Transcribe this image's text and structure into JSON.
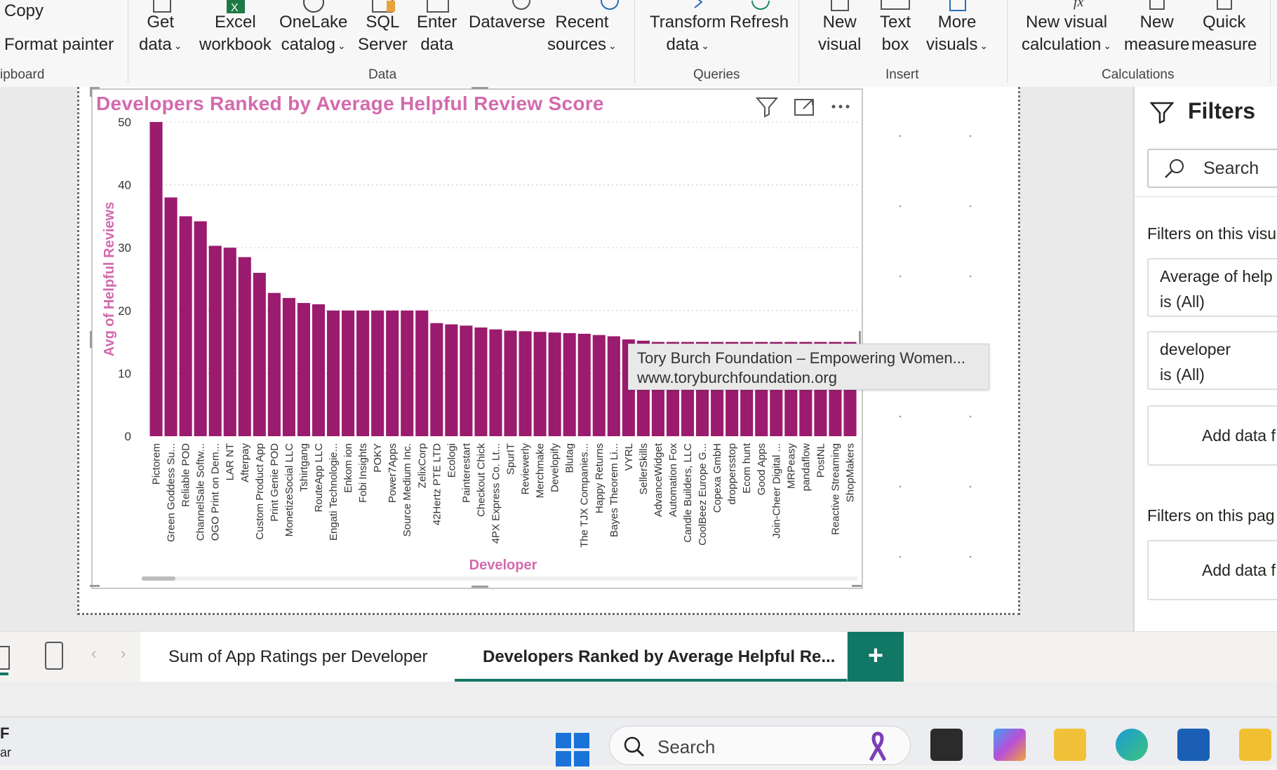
{
  "ribbon": {
    "clipboard": {
      "copy": "Copy",
      "format_painter": "Format painter",
      "group": "ipboard"
    },
    "data_group": {
      "label": "Data",
      "buttons": [
        {
          "l1": "Get",
          "l2": "data",
          "chev": true
        },
        {
          "l1": "Excel",
          "l2": "workbook",
          "chev": false
        },
        {
          "l1": "OneLake",
          "l2": "catalog",
          "chev": true
        },
        {
          "l1": "SQL",
          "l2": "Server",
          "chev": false
        },
        {
          "l1": "Enter",
          "l2": "data",
          "chev": false
        },
        {
          "l1": "Dataverse",
          "l2": "",
          "chev": false
        },
        {
          "l1": "Recent",
          "l2": "sources",
          "chev": true
        }
      ]
    },
    "queries_group": {
      "label": "Queries",
      "buttons": [
        {
          "l1": "Transform",
          "l2": "data",
          "chev": true
        },
        {
          "l1": "Refresh",
          "l2": "",
          "chev": false
        }
      ]
    },
    "insert_group": {
      "label": "Insert",
      "buttons": [
        {
          "l1": "New",
          "l2": "visual",
          "chev": false
        },
        {
          "l1": "Text",
          "l2": "box",
          "chev": false
        },
        {
          "l1": "More",
          "l2": "visuals",
          "chev": true
        }
      ]
    },
    "calc_group": {
      "label": "Calculations",
      "buttons": [
        {
          "l1": "New visual",
          "l2": "calculation",
          "chev": true
        },
        {
          "l1": "New",
          "l2": "measure",
          "chev": false
        },
        {
          "l1": "Quick",
          "l2": "measure",
          "chev": false
        }
      ]
    }
  },
  "visual": {
    "title": "Developers Ranked by Average Helpful Review Score",
    "tooltip": {
      "line1": "Tory Burch Foundation – Empowering Women...",
      "line2": "www.toryburchfoundation.org"
    }
  },
  "chart_data": {
    "type": "bar",
    "title": "Developers Ranked by Average Helpful Review Score",
    "xlabel": "Developer",
    "ylabel": "Avg of Helpful Reviews",
    "ylim": [
      0,
      50
    ],
    "yticks": [
      0,
      10,
      20,
      30,
      40,
      50
    ],
    "grid": true,
    "bar_color": "#9b1b6e",
    "label_color": "#d36aae",
    "categories": [
      "Pictorem",
      "Green Goddess Su...",
      "Reliable POD",
      "ChannelSale Softw...",
      "OGO Print on Dem...",
      "LAR NT",
      "Afterpay",
      "Custom Product App",
      "Print Genie POD",
      "MonetizeSocial LLC",
      "Tshirtgang",
      "RouteApp LLC",
      "Engati Technologie...",
      "Enkom ion",
      "Fobi Insights",
      "POKY",
      "Power7Apps",
      "Source Medium Inc.",
      "ZelixCorp",
      "42Hertz PTE LTD",
      "Ecologi",
      "Painterestart",
      "Checkout Chick",
      "4PX Express Co. Lt...",
      "SpurIT",
      "Reviewerly",
      "Merchmake",
      "Developify",
      "Blutag",
      "The TJX Companies...",
      "Happy Returns",
      "Bayes Theorem Li...",
      "VYRL",
      "SellerSkills",
      "AdvanceWidget",
      "Automation Fox",
      "Candle Builders, LLC",
      "CoolBeez Europe G...",
      "Copexa GmbH",
      "droppersstop",
      "Ecom hunt",
      "Good Apps",
      "Join-Cheer Digital ...",
      "MRPeasy",
      "pandaflow",
      "PostNL",
      "Reactive Streaming",
      "ShopMakers"
    ],
    "values": [
      50,
      38,
      35,
      34.2,
      30.3,
      30,
      28.5,
      26,
      22.8,
      22,
      21.2,
      21,
      20,
      20,
      20,
      20,
      20,
      20,
      20,
      18,
      17.8,
      17.6,
      17.3,
      17,
      16.8,
      16.7,
      16.6,
      16.5,
      16.4,
      16.3,
      16.1,
      15.9,
      15.4,
      15.2,
      15,
      15,
      15,
      15,
      15,
      15,
      15,
      15,
      15,
      15,
      15,
      15,
      15,
      15
    ]
  },
  "filters": {
    "title": "Filters",
    "search_placeholder": "Search",
    "on_visual": "Filters on this visu",
    "cards": [
      {
        "l1": "Average of help",
        "l2": "is (All)"
      },
      {
        "l1": "developer",
        "l2": "is (All)"
      }
    ],
    "add_data": "Add data f",
    "on_page": "Filters on this pag"
  },
  "page_tabs": [
    {
      "label": "Sum of App Ratings per Developer",
      "active": false
    },
    {
      "label": "Developers Ranked by Average Helpful Re...",
      "active": true
    }
  ],
  "add_page_label": "+",
  "taskbar": {
    "search": "Search",
    "left_text1": "F",
    "left_text2": "ar"
  },
  "colors": {
    "accent": "#117865",
    "bar": "#9b1b6e",
    "title": "#d36aae"
  }
}
